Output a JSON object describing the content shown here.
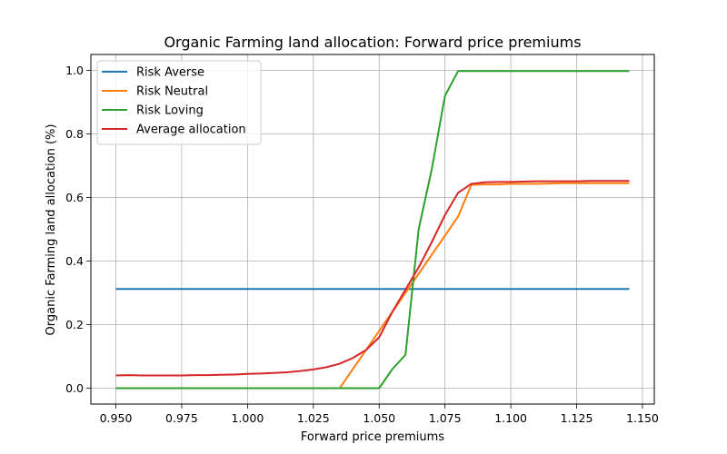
{
  "chart_data": {
    "type": "line",
    "title": "Organic Farming land allocation: Forward price premiums",
    "xlabel": "Forward price premiums",
    "ylabel": "Organic Farming land allocation (%)",
    "xlim": [
      0.9405,
      1.1545
    ],
    "ylim": [
      -0.05,
      1.05
    ],
    "xticks": [
      "0.950",
      "0.975",
      "1.000",
      "1.025",
      "1.050",
      "1.075",
      "1.100",
      "1.125",
      "1.150"
    ],
    "yticks": [
      "0.0",
      "0.2",
      "0.4",
      "0.6",
      "0.8",
      "1.0"
    ],
    "grid": true,
    "legend_position": "top-left",
    "series": [
      {
        "name": "Risk Averse",
        "color": "#1f77b4",
        "x": [
          0.95,
          1.145
        ],
        "y": [
          0.312,
          0.312
        ]
      },
      {
        "name": "Risk Neutral",
        "color": "#ff7f0e",
        "x": [
          0.95,
          1.0,
          1.035,
          1.05,
          1.06,
          1.065,
          1.07,
          1.075,
          1.08,
          1.085,
          1.09,
          1.095,
          1.1,
          1.11,
          1.12,
          1.13,
          1.14,
          1.145
        ],
        "y": [
          0.0,
          0.0,
          0.0,
          0.18,
          0.3,
          0.36,
          0.42,
          0.48,
          0.54,
          0.64,
          0.641,
          0.641,
          0.643,
          0.643,
          0.645,
          0.645,
          0.645,
          0.645
        ]
      },
      {
        "name": "Risk Loving",
        "color": "#2ca02c",
        "x": [
          0.95,
          1.0,
          1.05,
          1.055,
          1.06,
          1.065,
          1.07,
          1.075,
          1.08,
          1.1,
          1.12,
          1.145
        ],
        "y": [
          0.0,
          0.0,
          0.0,
          0.06,
          0.105,
          0.5,
          0.69,
          0.92,
          0.998,
          0.998,
          0.998,
          0.998
        ]
      },
      {
        "name": "Average allocation",
        "color": "#d62728",
        "x": [
          0.95,
          0.955,
          0.96,
          0.965,
          0.97,
          0.975,
          0.98,
          0.985,
          0.99,
          0.995,
          1.0,
          1.005,
          1.01,
          1.015,
          1.02,
          1.025,
          1.03,
          1.035,
          1.04,
          1.045,
          1.05,
          1.055,
          1.06,
          1.065,
          1.07,
          1.075,
          1.08,
          1.085,
          1.09,
          1.095,
          1.1,
          1.105,
          1.11,
          1.115,
          1.12,
          1.125,
          1.13,
          1.135,
          1.14,
          1.145
        ],
        "y": [
          0.04,
          0.041,
          0.04,
          0.04,
          0.04,
          0.04,
          0.041,
          0.041,
          0.042,
          0.043,
          0.045,
          0.046,
          0.048,
          0.05,
          0.054,
          0.059,
          0.066,
          0.077,
          0.095,
          0.12,
          0.16,
          0.24,
          0.31,
          0.38,
          0.46,
          0.545,
          0.615,
          0.643,
          0.648,
          0.649,
          0.649,
          0.65,
          0.651,
          0.651,
          0.651,
          0.651,
          0.652,
          0.652,
          0.652,
          0.652
        ]
      }
    ]
  }
}
